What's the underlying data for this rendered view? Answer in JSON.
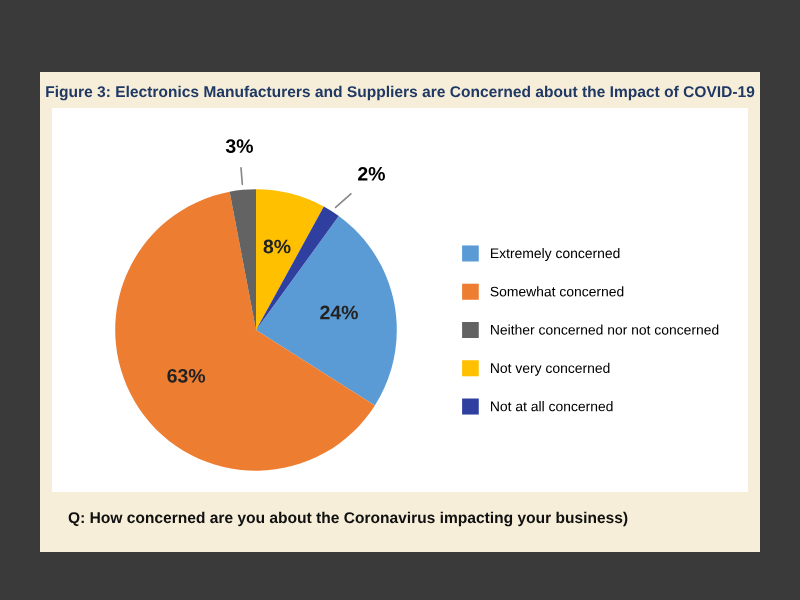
{
  "chart_data": {
    "type": "pie",
    "title": "Figure 3: Electronics Manufacturers and Suppliers are Concerned about the Impact of COVID-19",
    "categories": [
      "Extremely concerned",
      "Somewhat concerned",
      "Neither concerned nor not concerned",
      "Not very concerned",
      "Not at all concerned"
    ],
    "values": [
      24,
      63,
      3,
      8,
      2
    ],
    "value_labels": [
      "24%",
      "63%",
      "3%",
      "8%",
      "2%"
    ],
    "colors": [
      "#5b9bd5",
      "#ed7d31",
      "#636363",
      "#ffc000",
      "#2f3fa0"
    ],
    "legend": "right",
    "annotations": [
      "Q: How concerned are you about the Coronavirus impacting your business)"
    ]
  }
}
